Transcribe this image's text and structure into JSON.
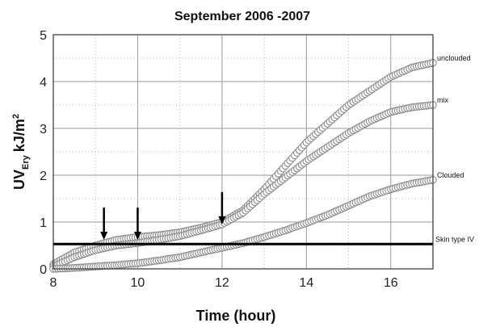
{
  "chart_data": {
    "type": "scatter",
    "title": "September 2006 -2007",
    "xlabel": "Time (hour)",
    "ylabel_main": "UV",
    "ylabel_sub": "Ery",
    "ylabel_unit": "kJ/m",
    "ylabel_sup": "2",
    "xlim": [
      8,
      17
    ],
    "ylim": [
      0,
      5
    ],
    "xticks": [
      "8",
      "10",
      "12",
      "14",
      "16"
    ],
    "yticks": [
      "0",
      "1",
      "2",
      "3",
      "4",
      "5"
    ],
    "grid": true,
    "series": [
      {
        "name": "unclouded",
        "x": [
          8,
          8.5,
          9,
          9.5,
          10,
          10.5,
          11,
          11.5,
          12,
          12.5,
          13,
          13.5,
          14,
          14.5,
          15,
          15.5,
          16,
          16.5,
          17
        ],
        "y": [
          0.1,
          0.35,
          0.5,
          0.62,
          0.68,
          0.72,
          0.78,
          0.88,
          1.0,
          1.25,
          1.7,
          2.2,
          2.7,
          3.1,
          3.5,
          3.8,
          4.1,
          4.3,
          4.4
        ]
      },
      {
        "name": "mix",
        "x": [
          8,
          8.5,
          9,
          9.5,
          10,
          10.5,
          11,
          11.5,
          12,
          12.5,
          13,
          13.5,
          14,
          14.5,
          15,
          15.5,
          16,
          16.5,
          17
        ],
        "y": [
          0.05,
          0.25,
          0.4,
          0.5,
          0.55,
          0.62,
          0.7,
          0.82,
          0.95,
          1.2,
          1.6,
          1.95,
          2.3,
          2.6,
          2.9,
          3.15,
          3.35,
          3.45,
          3.5
        ]
      },
      {
        "name": "Clouded",
        "x": [
          8,
          8.5,
          9,
          9.5,
          10,
          10.5,
          11,
          11.5,
          12,
          12.5,
          13,
          13.5,
          14,
          14.5,
          15,
          15.5,
          16,
          16.5,
          17
        ],
        "y": [
          0.0,
          0.02,
          0.05,
          0.08,
          0.12,
          0.18,
          0.25,
          0.35,
          0.45,
          0.55,
          0.68,
          0.82,
          0.98,
          1.15,
          1.35,
          1.55,
          1.7,
          1.82,
          1.9
        ]
      }
    ],
    "threshold": {
      "label": "Skin type IV",
      "y": 0.53
    },
    "arrows_x": [
      9.2,
      10.0,
      12.0
    ]
  }
}
